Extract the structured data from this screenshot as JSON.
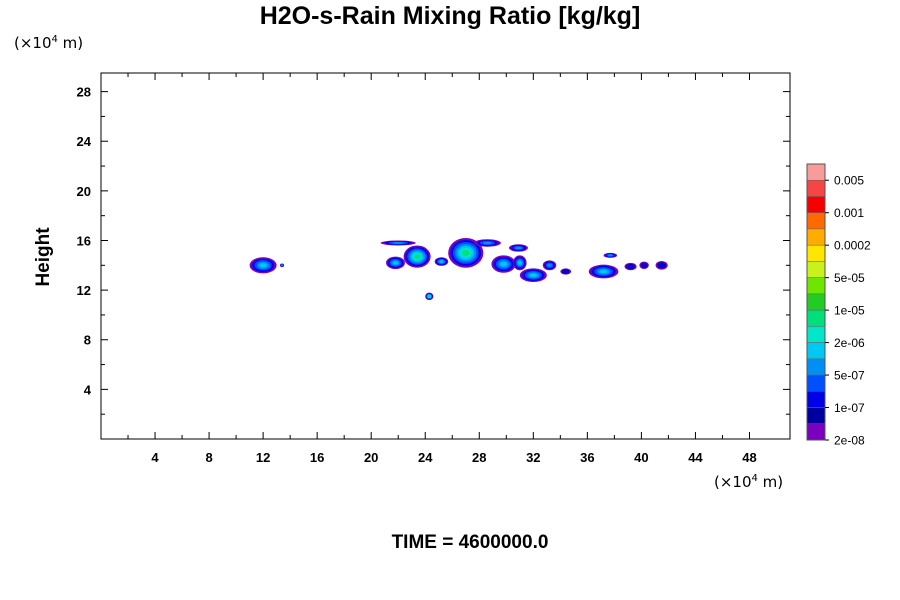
{
  "chart_data": {
    "type": "heatmap",
    "title": "H2O-s-Rain Mixing Ratio [kg/kg]",
    "ylabel": "Height",
    "x_unit": "(×10",
    "x_unit_exp": "4",
    "x_unit_tail": "m)",
    "y_unit": "(×10",
    "y_unit_exp": "4",
    "y_unit_tail": "m)",
    "time_label": "TIME = 4600000.0",
    "xlim": [
      0,
      51
    ],
    "ylim": [
      0,
      29.5
    ],
    "x_ticks": [
      4,
      8,
      12,
      16,
      20,
      24,
      28,
      32,
      36,
      40,
      44,
      48
    ],
    "y_ticks": [
      4,
      8,
      12,
      16,
      20,
      24,
      28
    ],
    "colorbar": {
      "colors": [
        "#f79b9b",
        "#f54545",
        "#f70000",
        "#ff6a00",
        "#ffab00",
        "#ffe600",
        "#c8f21a",
        "#6ee600",
        "#22cc22",
        "#00e07a",
        "#00e6c8",
        "#00c8f5",
        "#0090f5",
        "#0050ff",
        "#0000e6",
        "#0000a0",
        "#7b00c0"
      ],
      "labels": [
        "0.005",
        "0.001",
        "0.0002",
        "5e-05",
        "1e-05",
        "2e-06",
        "5e-07",
        "1e-07",
        "2e-08"
      ]
    },
    "cells": [
      {
        "x": 12.0,
        "y": 14.0,
        "rx": 1.0,
        "ry": 0.65,
        "level": "5e-07"
      },
      {
        "x": 13.4,
        "y": 14.0,
        "rx": 0.15,
        "ry": 0.15,
        "level": "1e-07"
      },
      {
        "x": 22.0,
        "y": 15.8,
        "rx": 1.3,
        "ry": 0.2,
        "level": "1e-07"
      },
      {
        "x": 21.8,
        "y": 14.2,
        "rx": 0.7,
        "ry": 0.5,
        "level": "5e-07"
      },
      {
        "x": 23.4,
        "y": 14.7,
        "rx": 1.0,
        "ry": 0.9,
        "level": "2e-06"
      },
      {
        "x": 24.3,
        "y": 11.5,
        "rx": 0.3,
        "ry": 0.3,
        "level": "2e-06"
      },
      {
        "x": 25.2,
        "y": 14.3,
        "rx": 0.5,
        "ry": 0.35,
        "level": "5e-07"
      },
      {
        "x": 27.0,
        "y": 15.0,
        "rx": 1.3,
        "ry": 1.2,
        "level": "2e-06"
      },
      {
        "x": 28.6,
        "y": 15.8,
        "rx": 1.0,
        "ry": 0.3,
        "level": "1e-07"
      },
      {
        "x": 29.8,
        "y": 14.1,
        "rx": 0.9,
        "ry": 0.7,
        "level": "5e-07"
      },
      {
        "x": 30.9,
        "y": 15.4,
        "rx": 0.7,
        "ry": 0.3,
        "level": "1e-07"
      },
      {
        "x": 31.0,
        "y": 14.2,
        "rx": 0.5,
        "ry": 0.6,
        "level": "5e-07"
      },
      {
        "x": 32.0,
        "y": 13.2,
        "rx": 1.0,
        "ry": 0.55,
        "level": "5e-07"
      },
      {
        "x": 33.2,
        "y": 14.0,
        "rx": 0.5,
        "ry": 0.4,
        "level": "1e-07"
      },
      {
        "x": 34.4,
        "y": 13.5,
        "rx": 0.4,
        "ry": 0.25,
        "level": "2e-08"
      },
      {
        "x": 37.2,
        "y": 13.5,
        "rx": 1.1,
        "ry": 0.55,
        "level": "5e-07"
      },
      {
        "x": 37.7,
        "y": 14.8,
        "rx": 0.5,
        "ry": 0.2,
        "level": "1e-07"
      },
      {
        "x": 39.2,
        "y": 13.9,
        "rx": 0.45,
        "ry": 0.3,
        "level": "2e-08"
      },
      {
        "x": 40.2,
        "y": 14.0,
        "rx": 0.35,
        "ry": 0.3,
        "level": "2e-08"
      },
      {
        "x": 41.5,
        "y": 14.0,
        "rx": 0.45,
        "ry": 0.35,
        "level": "2e-08"
      }
    ]
  }
}
